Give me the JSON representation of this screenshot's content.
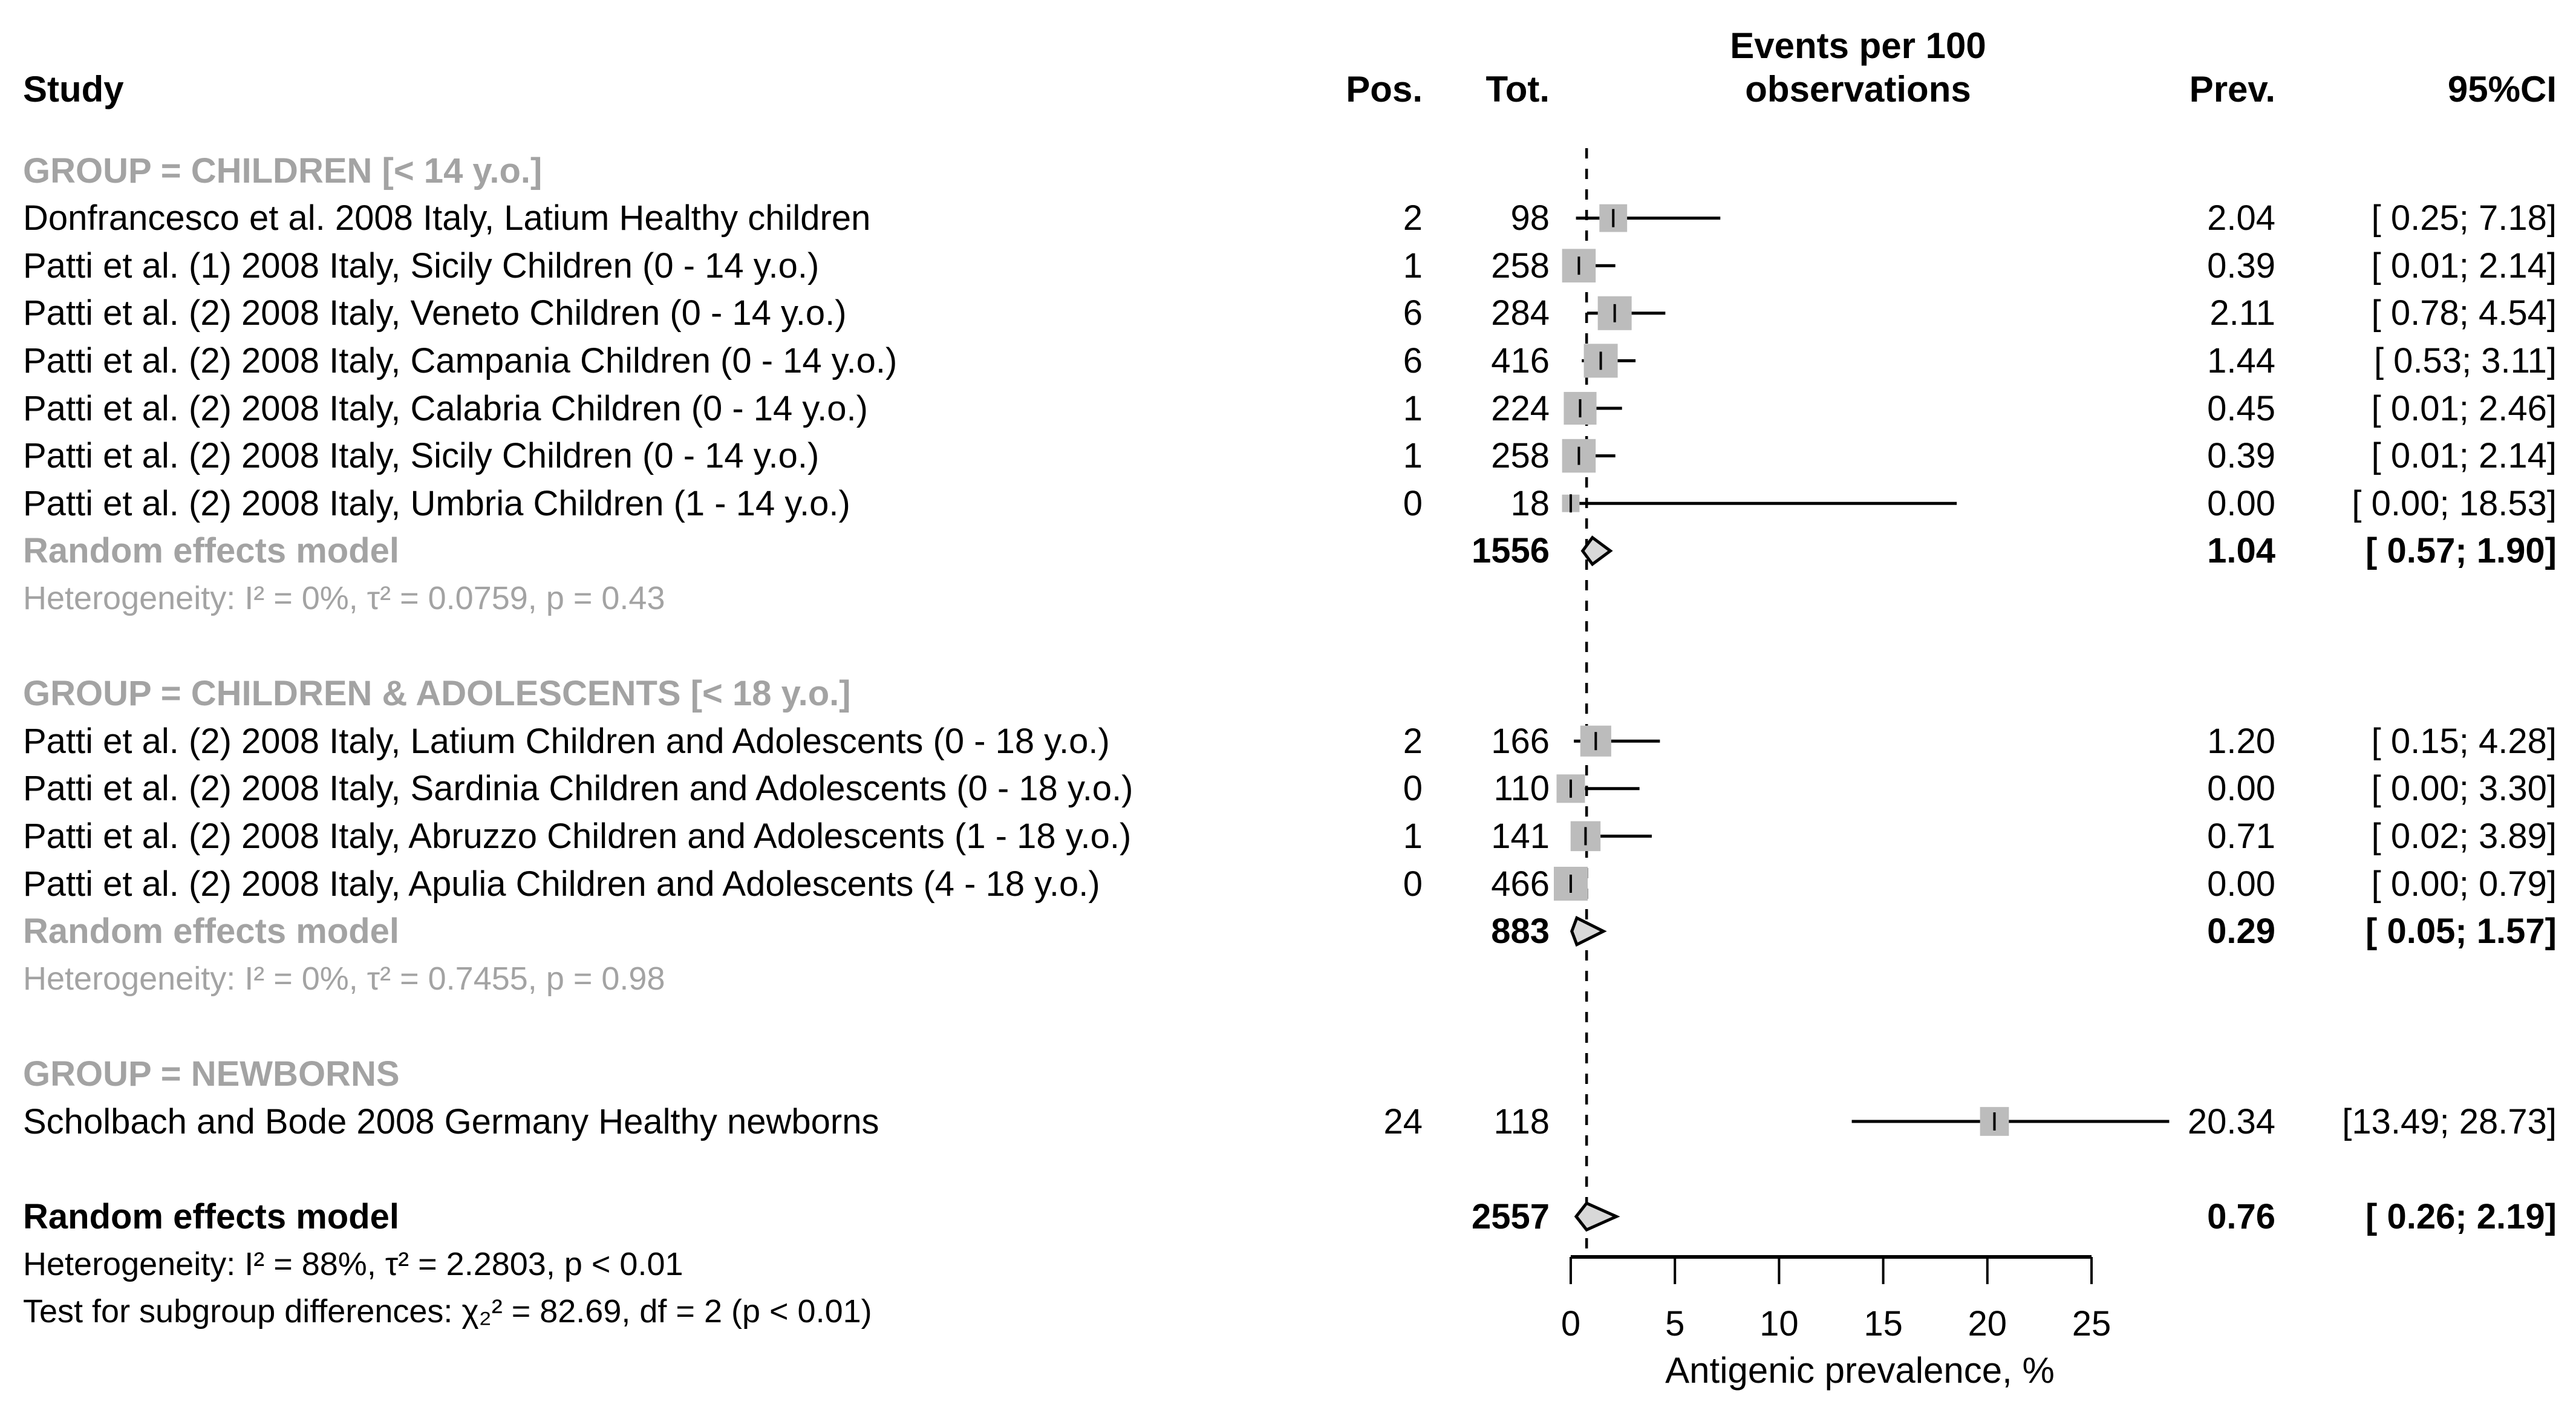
{
  "header": {
    "study": "Study",
    "pos": "Pos.",
    "tot": "Tot.",
    "events_line1": "Events per 100",
    "events_line2": "observations",
    "prev": "Prev.",
    "ci": "95%CI"
  },
  "axis": {
    "min": 0,
    "max": 25,
    "ticks": [
      "0",
      "5",
      "10",
      "15",
      "20",
      "25"
    ],
    "label": "Antigenic prevalence, %"
  },
  "colors": {
    "gray_text": "#a3a3a3",
    "square_fill": "#bcbcbc",
    "diamond_fill": "#d8d8d8",
    "line": "#000000"
  },
  "chart_data": {
    "type": "forest",
    "xlabel": "Antigenic prevalence, %",
    "xlim": [
      0,
      25
    ],
    "x_ticks": [
      0,
      5,
      10,
      15,
      20,
      25
    ],
    "reference_line": 0.76,
    "groups": [
      {
        "label": "GROUP = CHILDREN [< 14 y.o.]",
        "studies": [
          {
            "name": "Donfrancesco et al. 2008 Italy, Latium Healthy children",
            "pos": "2",
            "tot": "98",
            "prev": 2.04,
            "ci": [
              0.25,
              7.18
            ],
            "prev_text": "2.04",
            "ci_text": "[ 0.25; 7.18]"
          },
          {
            "name": "Patti et al. (1) 2008 Italy, Sicily Children (0 - 14 y.o.)",
            "pos": "1",
            "tot": "258",
            "prev": 0.39,
            "ci": [
              0.01,
              2.14
            ],
            "prev_text": "0.39",
            "ci_text": "[ 0.01; 2.14]"
          },
          {
            "name": "Patti et al. (2) 2008 Italy, Veneto Children (0 - 14 y.o.)",
            "pos": "6",
            "tot": "284",
            "prev": 2.11,
            "ci": [
              0.78,
              4.54
            ],
            "prev_text": "2.11",
            "ci_text": "[ 0.78; 4.54]"
          },
          {
            "name": "Patti et al. (2) 2008 Italy, Campania Children (0 - 14 y.o.)",
            "pos": "6",
            "tot": "416",
            "prev": 1.44,
            "ci": [
              0.53,
              3.11
            ],
            "prev_text": "1.44",
            "ci_text": "[ 0.53; 3.11]"
          },
          {
            "name": "Patti et al. (2) 2008 Italy, Calabria Children (0 - 14 y.o.)",
            "pos": "1",
            "tot": "224",
            "prev": 0.45,
            "ci": [
              0.01,
              2.46
            ],
            "prev_text": "0.45",
            "ci_text": "[ 0.01; 2.46]"
          },
          {
            "name": "Patti et al. (2) 2008 Italy, Sicily Children (0 - 14 y.o.)",
            "pos": "1",
            "tot": "258",
            "prev": 0.39,
            "ci": [
              0.01,
              2.14
            ],
            "prev_text": "0.39",
            "ci_text": "[ 0.01; 2.14]"
          },
          {
            "name": "Patti et al. (2) 2008 Italy, Umbria Children (1 - 14 y.o.)",
            "pos": "0",
            "tot": "18",
            "prev": 0.0,
            "ci": [
              0.0,
              18.53
            ],
            "prev_text": "0.00",
            "ci_text": "[ 0.00; 18.53]"
          }
        ],
        "summary": {
          "label": "Random effects model",
          "tot": "1556",
          "est": 1.04,
          "ci": [
            0.57,
            1.9
          ],
          "prev_text": "1.04",
          "ci_text": "[ 0.57; 1.90]"
        },
        "heterogeneity": "Heterogeneity: I² = 0%, τ² = 0.0759, p = 0.43"
      },
      {
        "label": "GROUP = CHILDREN & ADOLESCENTS [< 18 y.o.]",
        "studies": [
          {
            "name": "Patti et al. (2) 2008 Italy, Latium Children and Adolescents (0 - 18 y.o.)",
            "pos": "2",
            "tot": "166",
            "prev": 1.2,
            "ci": [
              0.15,
              4.28
            ],
            "prev_text": "1.20",
            "ci_text": "[ 0.15; 4.28]"
          },
          {
            "name": "Patti et al. (2) 2008 Italy, Sardinia Children and Adolescents (0 - 18 y.o.)",
            "pos": "0",
            "tot": "110",
            "prev": 0.0,
            "ci": [
              0.0,
              3.3
            ],
            "prev_text": "0.00",
            "ci_text": "[ 0.00; 3.30]"
          },
          {
            "name": "Patti et al. (2) 2008 Italy, Abruzzo Children and Adolescents (1 - 18 y.o.)",
            "pos": "1",
            "tot": "141",
            "prev": 0.71,
            "ci": [
              0.02,
              3.89
            ],
            "prev_text": "0.71",
            "ci_text": "[ 0.02; 3.89]"
          },
          {
            "name": "Patti et al. (2) 2008 Italy, Apulia Children and Adolescents (4 - 18 y.o.)",
            "pos": "0",
            "tot": "466",
            "prev": 0.0,
            "ci": [
              0.0,
              0.79
            ],
            "prev_text": "0.00",
            "ci_text": "[ 0.00; 0.79]"
          }
        ],
        "summary": {
          "label": "Random effects model",
          "tot": "883",
          "est": 0.29,
          "ci": [
            0.05,
            1.57
          ],
          "prev_text": "0.29",
          "ci_text": "[ 0.05; 1.57]"
        },
        "heterogeneity": "Heterogeneity: I² = 0%, τ² = 0.7455, p = 0.98"
      },
      {
        "label": "GROUP = NEWBORNS",
        "studies": [
          {
            "name": "Scholbach and Bode 2008 Germany Healthy newborns",
            "pos": "24",
            "tot": "118",
            "prev": 20.34,
            "ci": [
              13.49,
              28.73
            ],
            "prev_text": "20.34",
            "ci_text": "[13.49; 28.73]"
          }
        ],
        "summary": null,
        "heterogeneity": null
      }
    ],
    "overall": {
      "label": "Random effects model",
      "tot": "2557",
      "est": 0.76,
      "ci": [
        0.26,
        2.19
      ],
      "prev_text": "0.76",
      "ci_text": "[ 0.26; 2.19]",
      "heterogeneity": "Heterogeneity: I² = 88%, τ² = 2.2803, p < 0.01",
      "subgroup_test": "Test for subgroup differences: χ₂² = 82.69, df = 2 (p < 0.01)"
    }
  }
}
